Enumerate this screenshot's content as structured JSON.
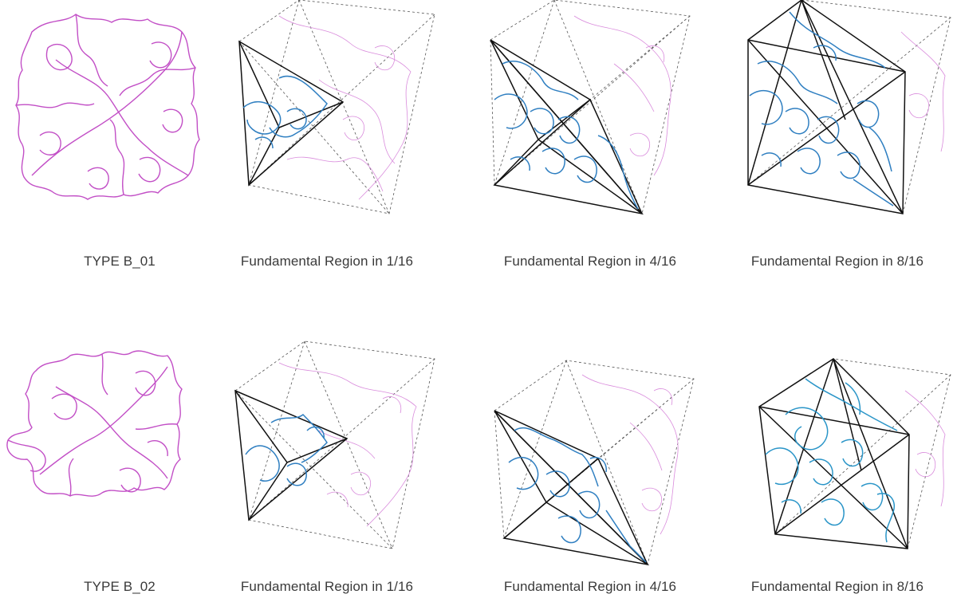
{
  "colors": {
    "surface": "#c24fc6",
    "surface_light": "#d98bdc",
    "region": "#2f7fc1",
    "region_cyan": "#2a95c8",
    "frame": "#111111",
    "dashed": "#555555"
  },
  "rows": [
    {
      "panels": [
        {
          "caption": "TYPE B_01",
          "kind": "type",
          "fraction": 0
        },
        {
          "caption": "Fundamental Region in 1/16",
          "kind": "region",
          "fraction": 1
        },
        {
          "caption": "Fundamental Region in 4/16",
          "kind": "region",
          "fraction": 4
        },
        {
          "caption": "Fundamental Region in 8/16",
          "kind": "region",
          "fraction": 8
        }
      ]
    },
    {
      "panels": [
        {
          "caption": "TYPE B_02",
          "kind": "type",
          "fraction": 0
        },
        {
          "caption": "Fundamental Region in 1/16",
          "kind": "region",
          "fraction": 1
        },
        {
          "caption": "Fundamental Region in 4/16",
          "kind": "region",
          "fraction": 4
        },
        {
          "caption": "Fundamental Region in 8/16",
          "kind": "region",
          "fraction": 8
        }
      ]
    }
  ]
}
